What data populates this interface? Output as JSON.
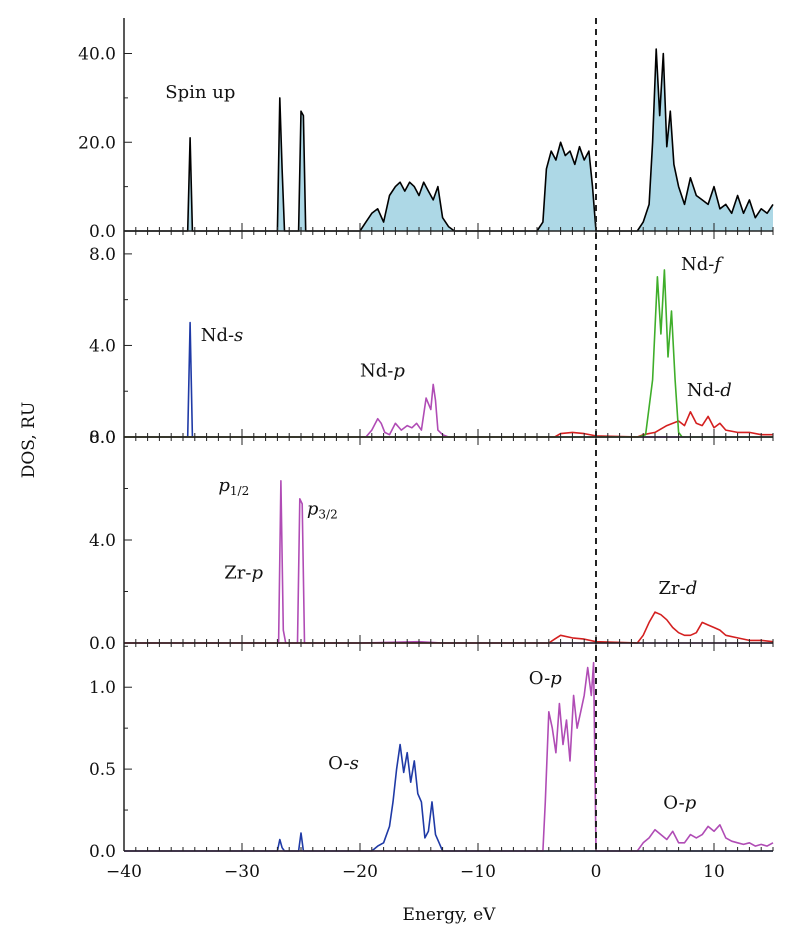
{
  "chart_data": {
    "type": "line",
    "xlabel": "Energy, eV",
    "ylabel": "DOS, RU",
    "xlim": [
      -40,
      15
    ],
    "xticks": [
      -40,
      -30,
      -20,
      -10,
      0,
      10
    ],
    "xtick_labels": [
      "−40",
      "−30",
      "−20",
      "−10",
      "0",
      "10"
    ],
    "fermi_level": 0,
    "grid": false,
    "panels": [
      {
        "id": "total",
        "ylim": [
          0,
          48
        ],
        "yticks": [
          0,
          20,
          40
        ],
        "ytick_labels": [
          "0.0",
          "20.0",
          "40.0"
        ],
        "annotations": [
          {
            "text": "Spin up",
            "x": -36.5,
            "y": 30
          }
        ],
        "series": [
          {
            "color": "#000000",
            "fill": "#add8e6",
            "x": [
              -40,
              -34.6,
              -34.4,
              -34.2,
              -34.0,
              -27,
              -26.8,
              -26.6,
              -26.4,
              -26.2,
              -25.2,
              -25.0,
              -24.8,
              -24.6,
              -20,
              -19.5,
              -19.0,
              -18.5,
              -18.0,
              -17.5,
              -17.0,
              -16.6,
              -16.2,
              -15.8,
              -15.4,
              -15.0,
              -14.6,
              -14.2,
              -13.8,
              -13.4,
              -13.0,
              -12.5,
              -12.0,
              -11.5,
              -5,
              -4.5,
              -4.2,
              -3.8,
              -3.4,
              -3.0,
              -2.6,
              -2.2,
              -1.8,
              -1.4,
              -1.0,
              -0.6,
              -0.3,
              0,
              3.5,
              4.0,
              4.5,
              4.8,
              5.1,
              5.4,
              5.7,
              6.0,
              6.3,
              6.6,
              7.0,
              7.5,
              8.0,
              8.5,
              9.0,
              9.5,
              10.0,
              10.5,
              11.0,
              11.5,
              12.0,
              12.5,
              13.0,
              13.5,
              14.0,
              14.5,
              15.0
            ],
            "y": [
              0,
              0,
              21,
              0,
              0,
              0,
              30,
              14,
              0,
              0,
              0,
              27,
              26,
              0,
              0,
              2,
              4,
              5,
              2,
              8,
              10,
              11,
              9,
              11,
              10,
              8,
              11,
              9,
              7,
              10,
              3,
              1,
              0,
              0,
              0,
              2,
              14,
              18,
              16,
              20,
              17,
              18,
              15,
              19,
              16,
              18,
              10,
              0,
              0,
              2,
              6,
              20,
              41,
              26,
              40,
              19,
              27,
              15,
              10,
              6,
              12,
              8,
              7,
              6,
              10,
              5,
              6,
              4,
              8,
              4,
              7,
              3,
              5,
              4,
              6
            ]
          }
        ]
      },
      {
        "id": "nd",
        "ylim": [
          0,
          9.0
        ],
        "yticks": [
          0,
          4,
          8
        ],
        "ytick_labels": [
          "0.0",
          "4.0",
          "8.0"
        ],
        "annotations": [
          {
            "text": "Nd-",
            "it": "s",
            "x": -33.5,
            "y": 4.2
          },
          {
            "text": "Nd-",
            "it": "p",
            "x": -20.0,
            "y": 2.65
          },
          {
            "text": "Nd-",
            "it": "f",
            "x": 7.2,
            "y": 7.3
          },
          {
            "text": "Nd-",
            "it": "d",
            "x": 7.7,
            "y": 1.8
          }
        ],
        "series": [
          {
            "name": "Nd-s",
            "color": "#1f3aa6",
            "x": [
              -40,
              -34.6,
              -34.4,
              -34.2,
              -34.0,
              15
            ],
            "y": [
              0,
              0,
              5.0,
              0,
              0,
              0
            ]
          },
          {
            "name": "Nd-p",
            "color": "#b04cb5",
            "x": [
              -40,
              -19.5,
              -19.0,
              -18.5,
              -18.2,
              -17.9,
              -17.5,
              -17.0,
              -16.5,
              -16.0,
              -15.6,
              -15.2,
              -14.8,
              -14.4,
              -14.0,
              -13.8,
              -13.6,
              -13.4,
              -13.0,
              -12.5,
              15
            ],
            "y": [
              0,
              0,
              0.3,
              0.8,
              0.6,
              0.2,
              0.1,
              0.6,
              0.3,
              0.5,
              0.4,
              0.6,
              0.3,
              1.7,
              1.2,
              2.3,
              1.6,
              0.3,
              0.1,
              0,
              0
            ]
          },
          {
            "name": "Nd-d",
            "color": "#d42020",
            "x": [
              -40,
              -3.5,
              -3.0,
              -2.0,
              -1.0,
              0,
              3.5,
              4.0,
              5.0,
              6.0,
              7.0,
              7.5,
              8.0,
              8.5,
              9.0,
              9.5,
              10.0,
              10.5,
              11.0,
              12.0,
              13.0,
              14.0,
              15.0
            ],
            "y": [
              0,
              0,
              0.15,
              0.2,
              0.15,
              0.05,
              0,
              0.1,
              0.2,
              0.5,
              0.7,
              0.5,
              1.1,
              0.6,
              0.5,
              0.9,
              0.4,
              0.6,
              0.3,
              0.2,
              0.2,
              0.1,
              0.1
            ]
          },
          {
            "name": "Nd-f",
            "color": "#3fae2a",
            "x": [
              -40,
              3.6,
              4.2,
              4.8,
              5.2,
              5.5,
              5.8,
              6.1,
              6.4,
              6.7,
              7.0,
              7.3,
              15
            ],
            "y": [
              0,
              0,
              0.1,
              2.5,
              7.0,
              4.5,
              7.3,
              3.5,
              5.5,
              2.5,
              0.2,
              0,
              0
            ]
          }
        ]
      },
      {
        "id": "zr",
        "ylim": [
          0,
          8.0
        ],
        "yticks": [
          0,
          4,
          8
        ],
        "ytick_labels": [
          "0.0",
          "4.0",
          "8.0"
        ],
        "annotations": [
          {
            "text": "Zr-",
            "it": "p",
            "x": -31.5,
            "y": 2.5
          },
          {
            "text": "p",
            "sub": "1/2",
            "x": -32.0,
            "y": 5.9
          },
          {
            "text": "p",
            "sub": "3/2",
            "x": -24.5,
            "y": 5.0
          },
          {
            "text": "Zr-",
            "it": "d",
            "x": 5.3,
            "y": 1.9
          }
        ],
        "series": [
          {
            "name": "Zr-p",
            "color": "#b04cb5",
            "x": [
              -40,
              -26.9,
              -26.7,
              -26.5,
              -26.3,
              -25.3,
              -25.1,
              -24.9,
              -24.7,
              -20,
              -15,
              -13,
              15
            ],
            "y": [
              0,
              0,
              6.3,
              0.5,
              0,
              0,
              5.6,
              5.4,
              0,
              0,
              0.05,
              0,
              0
            ]
          },
          {
            "name": "Zr-d",
            "color": "#d42020",
            "x": [
              -40,
              -4.0,
              -3.5,
              -3.0,
              -2.0,
              -1.0,
              0,
              3.5,
              4.0,
              4.5,
              5.0,
              5.5,
              6.0,
              6.5,
              7.0,
              7.5,
              8.0,
              8.5,
              9.0,
              9.5,
              10.0,
              10.5,
              11.0,
              12.0,
              13.0,
              14.0,
              15.0
            ],
            "y": [
              0,
              0,
              0.15,
              0.3,
              0.2,
              0.15,
              0.05,
              0,
              0.3,
              0.8,
              1.2,
              1.1,
              0.9,
              0.6,
              0.4,
              0.3,
              0.3,
              0.4,
              0.8,
              0.7,
              0.6,
              0.5,
              0.3,
              0.2,
              0.1,
              0.1,
              0.05
            ]
          }
        ]
      },
      {
        "id": "o",
        "ylim": [
          0,
          1.27
        ],
        "yticks": [
          0,
          0.5,
          1.0
        ],
        "ytick_labels": [
          "0.0",
          "0.5",
          "1.0"
        ],
        "annotations": [
          {
            "text": "O-",
            "it": "s",
            "x": -22.7,
            "y": 0.5
          },
          {
            "text": "O-",
            "it": "p",
            "x": -5.7,
            "y": 1.02
          },
          {
            "text": "O-",
            "it": "p",
            "x": 5.7,
            "y": 0.26
          }
        ],
        "series": [
          {
            "name": "O-s",
            "color": "#1f3aa6",
            "x": [
              -40,
              -27,
              -26.8,
              -26.6,
              -26.4,
              -25.2,
              -25.0,
              -24.8,
              -19.0,
              -18.5,
              -18.0,
              -17.5,
              -17.2,
              -16.9,
              -16.6,
              -16.3,
              -16.0,
              -15.7,
              -15.4,
              -15.1,
              -14.8,
              -14.5,
              -14.2,
              -13.9,
              -13.6,
              -13.3,
              -13.0,
              15
            ],
            "y": [
              0,
              0,
              0.07,
              0.02,
              0,
              0,
              0.11,
              0,
              0,
              0.03,
              0.05,
              0.15,
              0.3,
              0.5,
              0.65,
              0.48,
              0.6,
              0.42,
              0.55,
              0.35,
              0.3,
              0.08,
              0.12,
              0.3,
              0.1,
              0.05,
              0,
              0
            ]
          },
          {
            "name": "O-p",
            "color": "#b04cb5",
            "x": [
              -40,
              -4.5,
              -4.3,
              -4.0,
              -3.7,
              -3.4,
              -3.1,
              -2.8,
              -2.5,
              -2.2,
              -1.9,
              -1.6,
              -1.3,
              -1.0,
              -0.7,
              -0.4,
              -0.2,
              0,
              3.5,
              4.0,
              4.5,
              5.0,
              5.5,
              6.0,
              6.5,
              7.0,
              7.5,
              8.0,
              8.5,
              9.0,
              9.5,
              10.0,
              10.5,
              11.0,
              11.5,
              12.0,
              12.5,
              13.0,
              13.5,
              14.0,
              14.5,
              15.0
            ],
            "y": [
              0,
              0,
              0.3,
              0.85,
              0.75,
              0.6,
              0.9,
              0.65,
              0.8,
              0.55,
              0.95,
              0.75,
              0.85,
              0.95,
              1.12,
              0.95,
              1.15,
              0,
              0,
              0.05,
              0.08,
              0.13,
              0.1,
              0.07,
              0.12,
              0.05,
              0.05,
              0.1,
              0.08,
              0.1,
              0.15,
              0.12,
              0.16,
              0.08,
              0.06,
              0.05,
              0.04,
              0.05,
              0.03,
              0.04,
              0.03,
              0.05
            ]
          }
        ]
      }
    ]
  }
}
